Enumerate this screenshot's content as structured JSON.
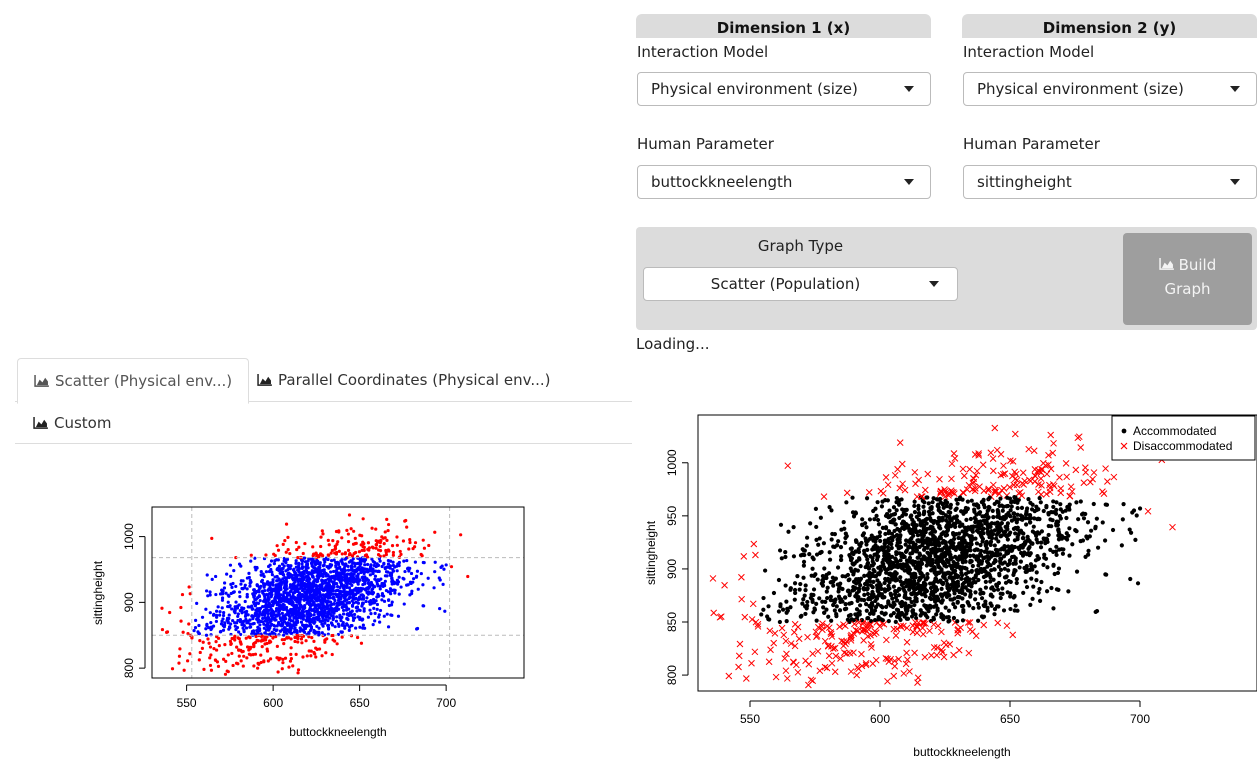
{
  "dimension_x": {
    "header": "Dimension 1 (x)",
    "interaction_label": "Interaction Model",
    "interaction_value": "Physical environment (size)",
    "parameter_label": "Human Parameter",
    "parameter_value": "buttockkneelength"
  },
  "dimension_y": {
    "header": "Dimension 2 (y)",
    "interaction_label": "Interaction Model",
    "interaction_value": "Physical environment (size)",
    "parameter_label": "Human Parameter",
    "parameter_value": "sittingheight"
  },
  "graph": {
    "type_label": "Graph Type",
    "type_value": "Scatter (Population)",
    "build_label_line1": "Build",
    "build_label_line2": "Graph",
    "loading": "Loading..."
  },
  "tabs": [
    {
      "label": "Scatter (Physical env...)",
      "icon": "area-chart-icon",
      "active": true
    },
    {
      "label": "Parallel Coordinates (Physical env...)",
      "icon": "area-chart-icon",
      "active": false
    },
    {
      "label": "Custom",
      "icon": "area-chart-icon",
      "active": false
    }
  ],
  "colors": {
    "accommodated_small": "#0000ff",
    "disaccommodated": "#ff0000",
    "accommodated_large": "#000000",
    "panel_grey": "#dcdcdc",
    "button_grey": "#9e9e9e"
  },
  "chart_data": [
    {
      "type": "scatter",
      "title": "",
      "xlabel": "buttockkneelength",
      "ylabel": "sittingheight",
      "xlim": [
        530,
        745
      ],
      "ylim": [
        785,
        1045
      ],
      "xticks": [
        550,
        600,
        650,
        700
      ],
      "yticks": [
        800,
        900,
        1000
      ],
      "grid": true,
      "reference_lines": {
        "x": [
          553,
          702
        ],
        "y": [
          850,
          968
        ]
      },
      "series": [
        {
          "color": "#0000ff",
          "marker": "dot",
          "values": "approx. 2000 points, x 553–702, y 850–968"
        },
        {
          "color": "#ff0000",
          "marker": "dot",
          "values": "approx. 300 points outside limits, x 535–740, y 790–1035"
        }
      ]
    },
    {
      "type": "scatter",
      "title": "",
      "xlabel": "buttockkneelength",
      "ylabel": "sittingheight",
      "xlim": [
        530,
        745
      ],
      "ylim": [
        785,
        1045
      ],
      "xticks": [
        550,
        600,
        650,
        700
      ],
      "yticks": [
        800,
        850,
        900,
        950,
        1000
      ],
      "grid": false,
      "legend_position": "top-right",
      "series": [
        {
          "name": "Accommodated",
          "color": "#000000",
          "marker": "dot",
          "values": "approx. 2000 points, x 553–702, y 850–968"
        },
        {
          "name": "Disaccommodated",
          "color": "#ff0000",
          "marker": "x",
          "values": "approx. 300 points outside limits, x 535–740, y 790–1040"
        }
      ]
    }
  ]
}
